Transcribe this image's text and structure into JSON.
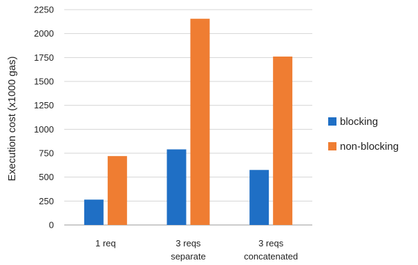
{
  "chart_data": {
    "type": "bar",
    "categories": [
      [
        "1 req"
      ],
      [
        "3 reqs",
        "separate"
      ],
      [
        "3 reqs",
        "concatenated"
      ]
    ],
    "series": [
      {
        "name": "blocking",
        "color": "#1f6fc5",
        "values": [
          265,
          790,
          575
        ]
      },
      {
        "name": "non-blocking",
        "color": "#ef7d32",
        "values": [
          720,
          2155,
          1760
        ]
      }
    ],
    "ylabel": "Execution cost (x1000 gas)",
    "ylim": [
      0,
      2250
    ],
    "yticks": [
      0,
      250,
      500,
      750,
      1000,
      1250,
      1500,
      1750,
      2000,
      2250
    ],
    "grid": true,
    "legend_position": "right"
  }
}
